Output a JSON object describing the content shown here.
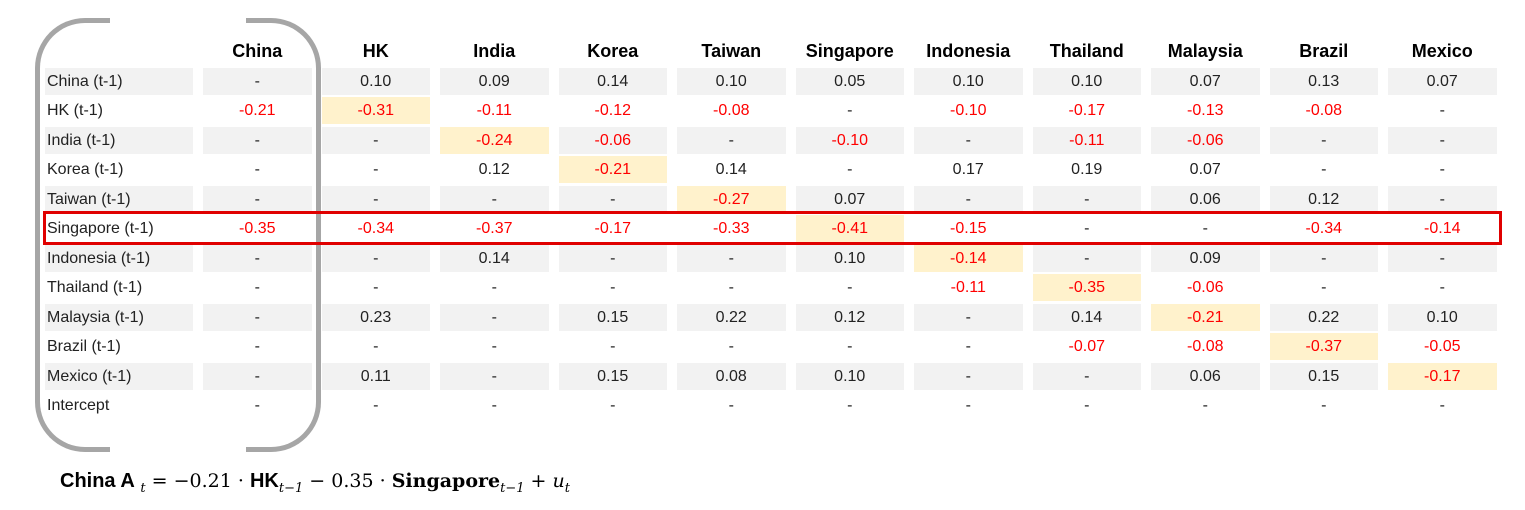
{
  "table": {
    "columns": [
      "China",
      "HK",
      "India",
      "Korea",
      "Taiwan",
      "Singapore",
      "Indonesia",
      "Thailand",
      "Malaysia",
      "Brazil",
      "Mexico"
    ],
    "rows": [
      {
        "label": "China (t-1)",
        "values": [
          "-",
          "0.10",
          "0.09",
          "0.14",
          "0.10",
          "0.05",
          "0.10",
          "0.10",
          "0.07",
          "0.13",
          "0.07"
        ],
        "highlight": -1
      },
      {
        "label": "HK (t-1)",
        "values": [
          "-0.21",
          "-0.31",
          "-0.11",
          "-0.12",
          "-0.08",
          "-",
          "-0.10",
          "-0.17",
          "-0.13",
          "-0.08",
          "-"
        ],
        "highlight": 1
      },
      {
        "label": "India (t-1)",
        "values": [
          "-",
          "-",
          "-0.24",
          "-0.06",
          "-",
          "-0.10",
          "-",
          "-0.11",
          "-0.06",
          "-",
          "-"
        ],
        "highlight": 2
      },
      {
        "label": "Korea (t-1)",
        "values": [
          "-",
          "-",
          "0.12",
          "-0.21",
          "0.14",
          "-",
          "0.17",
          "0.19",
          "0.07",
          "-",
          "-"
        ],
        "highlight": 3
      },
      {
        "label": "Taiwan (t-1)",
        "values": [
          "-",
          "-",
          "-",
          "-",
          "-0.27",
          "0.07",
          "-",
          "-",
          "0.06",
          "0.12",
          "-"
        ],
        "highlight": 4
      },
      {
        "label": "Singapore (t-1)",
        "values": [
          "-0.35",
          "-0.34",
          "-0.37",
          "-0.17",
          "-0.33",
          "-0.41",
          "-0.15",
          "-",
          "-",
          "-0.34",
          "-0.14"
        ],
        "highlight": 5
      },
      {
        "label": "Indonesia (t-1)",
        "values": [
          "-",
          "-",
          "0.14",
          "-",
          "-",
          "0.10",
          "-0.14",
          "-",
          "0.09",
          "-",
          "-"
        ],
        "highlight": 6
      },
      {
        "label": "Thailand (t-1)",
        "values": [
          "-",
          "-",
          "-",
          "-",
          "-",
          "-",
          "-0.11",
          "-0.35",
          "-0.06",
          "-",
          "-"
        ],
        "highlight": 7
      },
      {
        "label": "Malaysia (t-1)",
        "values": [
          "-",
          "0.23",
          "-",
          "0.15",
          "0.22",
          "0.12",
          "-",
          "0.14",
          "-0.21",
          "0.22",
          "0.10"
        ],
        "highlight": 8
      },
      {
        "label": "Brazil (t-1)",
        "values": [
          "-",
          "-",
          "-",
          "-",
          "-",
          "-",
          "-",
          "-0.07",
          "-0.08",
          "-0.37",
          "-0.05"
        ],
        "highlight": 9
      },
      {
        "label": "Mexico (t-1)",
        "values": [
          "-",
          "0.11",
          "-",
          "0.15",
          "0.08",
          "0.10",
          "-",
          "-",
          "0.06",
          "0.15",
          "-0.17"
        ],
        "highlight": 10
      },
      {
        "label": "Intercept",
        "values": [
          "-",
          "-",
          "-",
          "-",
          "-",
          "-",
          "-",
          "-",
          "-",
          "-",
          "-"
        ],
        "highlight": -1
      }
    ],
    "highlighted_row": "Singapore (t-1)",
    "colors": {
      "negative": "#ff0000",
      "diagonal": "#fff2cc",
      "shade": "#f2f2f2",
      "box": "#e00000",
      "bracket": "#a6a6a6"
    }
  },
  "equation": {
    "lhs": "China A",
    "lhs_sub": "t",
    "eq": " = −0.21 · ",
    "v1": "HK",
    "v1_sub": "t−1",
    "op": " − 0.35 · ",
    "v2": "Singapore",
    "v2_sub": "t−1",
    "plus": " + ",
    "err": "u",
    "err_sub": "t"
  }
}
